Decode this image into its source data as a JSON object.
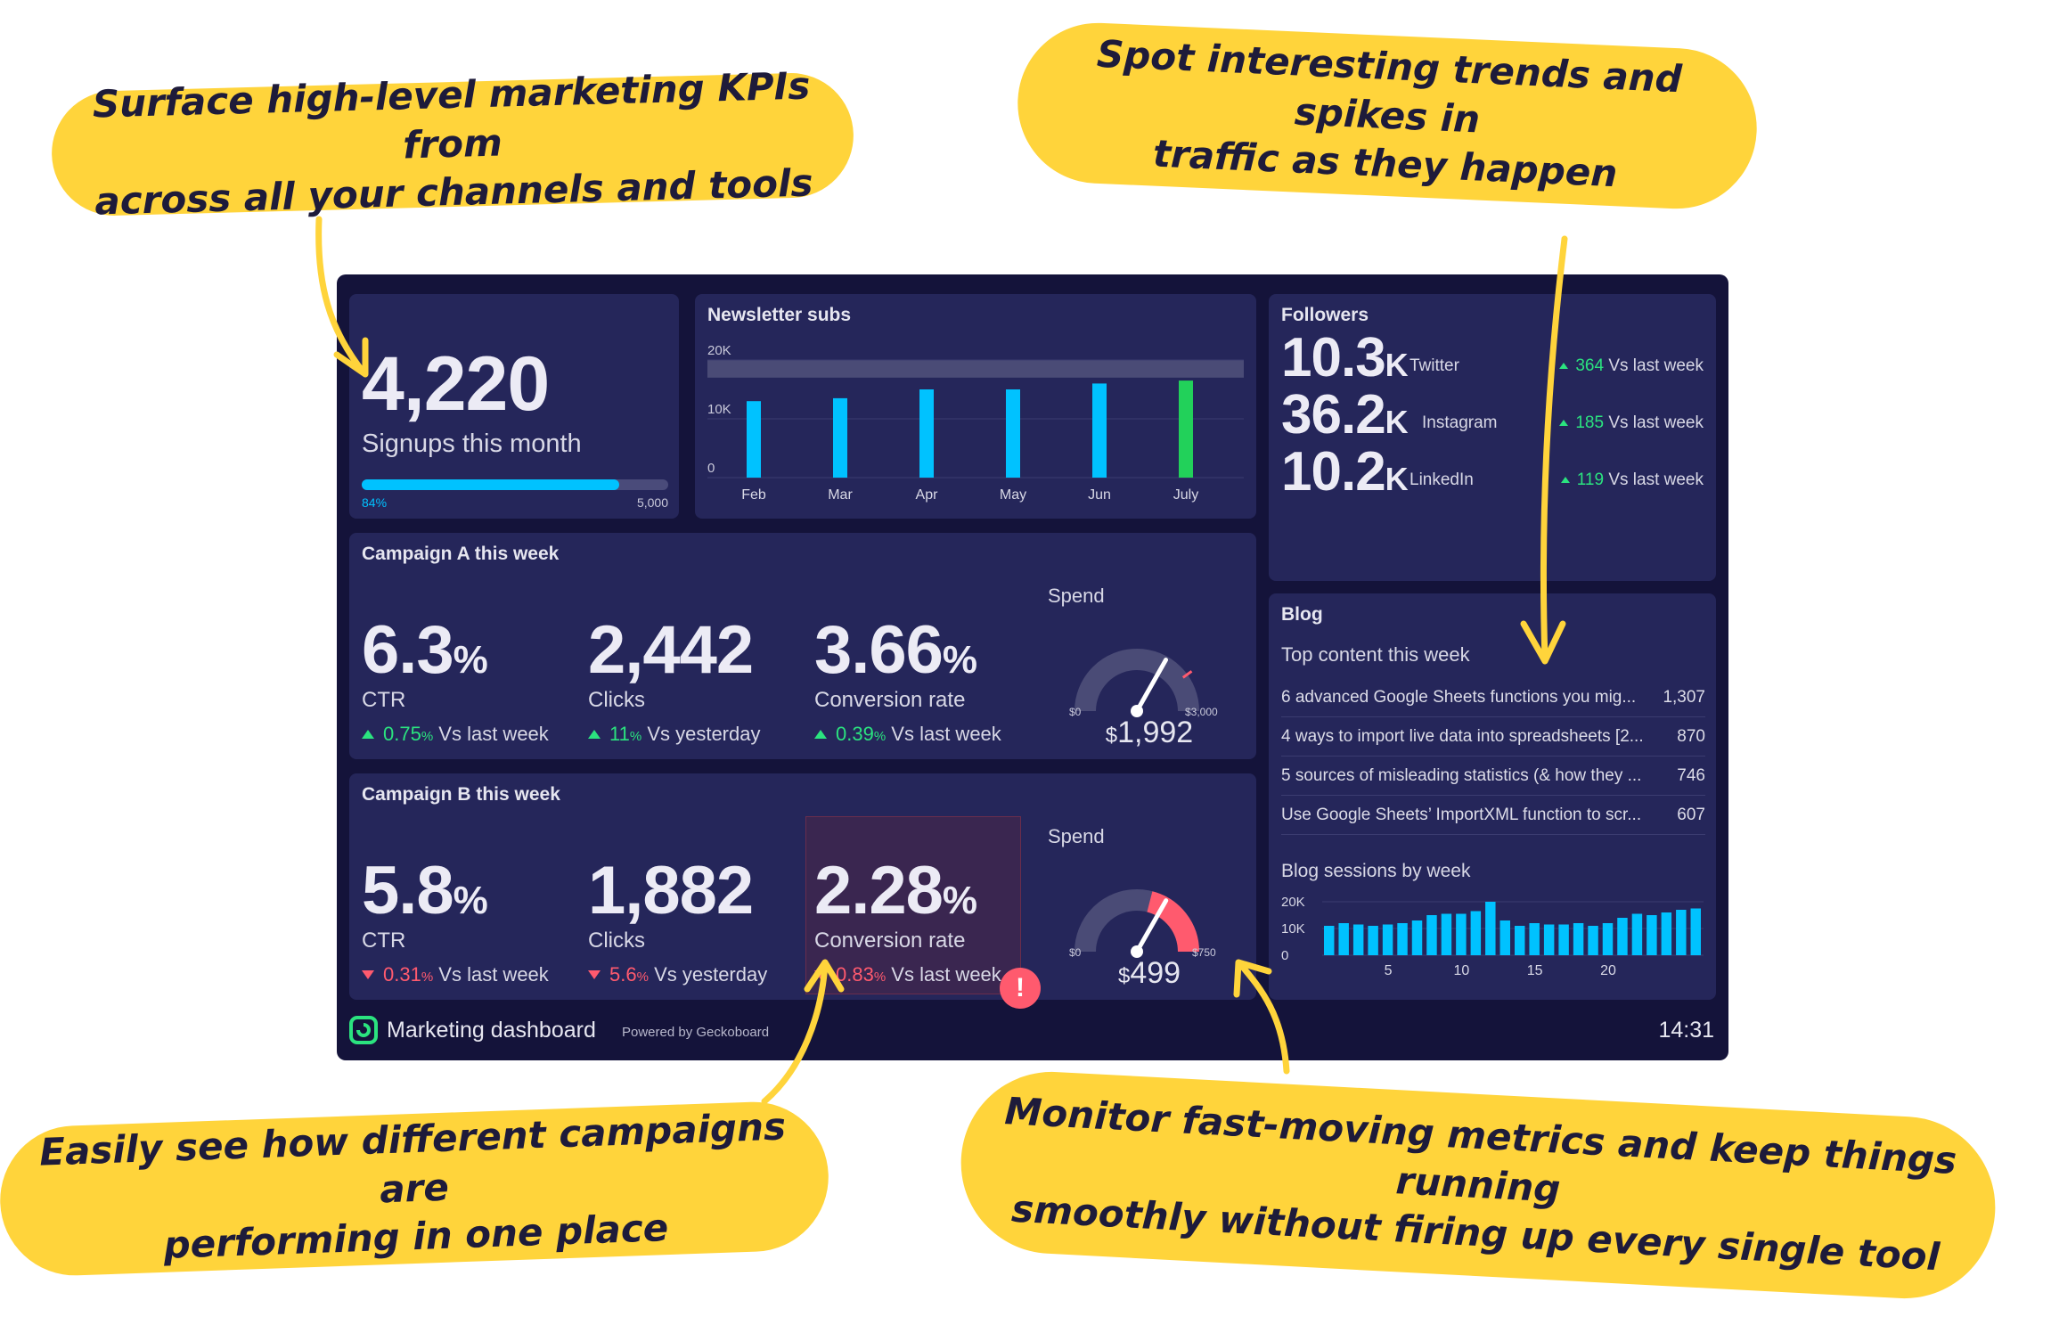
{
  "callouts": {
    "top_left": [
      "Surface high-level marketing KPIs from",
      "across all your channels and tools"
    ],
    "top_right": [
      "Spot interesting trends and spikes in",
      "traffic as they happen"
    ],
    "bottom_left": [
      "Easily see how different campaigns are",
      "performing in one place"
    ],
    "bottom_right": [
      "Monitor fast-moving metrics and keep things running",
      "smoothly without firing up every single tool"
    ]
  },
  "colors": {
    "callout_yellow": "#ffd43b",
    "dashboard_bg": "#14133a",
    "panel_bg": "#25265a",
    "bar_blue": "#00c2ff",
    "bar_green": "#22d15a",
    "positive": "#2be37f",
    "negative": "#ff5a6e",
    "alert_panel": "#3a2650"
  },
  "signups": {
    "value": "4,220",
    "label": "Signups this month",
    "progress": 0.84,
    "progress_label": "84%",
    "goal_label": "5,000"
  },
  "newsletter": {
    "title": "Newsletter subs",
    "chart_data": {
      "type": "bar",
      "title": "Newsletter subs",
      "categories": [
        "Feb",
        "Mar",
        "Apr",
        "May",
        "Jun",
        "July"
      ],
      "values": [
        13000,
        13500,
        15000,
        15000,
        16000,
        16500
      ],
      "highlight_last": true,
      "ylim": [
        0,
        20000
      ],
      "yticks": [
        "0",
        "10K",
        "20K"
      ],
      "target_band": [
        17000,
        20000
      ]
    }
  },
  "followers": {
    "title": "Followers",
    "rows": [
      {
        "value": "10.3",
        "unit": "K",
        "network": "Twitter",
        "change": "364",
        "compare": "Vs last week"
      },
      {
        "value": "36.2",
        "unit": "K",
        "network": "Instagram",
        "change": "185",
        "compare": "Vs last week"
      },
      {
        "value": "10.2",
        "unit": "K",
        "network": "LinkedIn",
        "change": "119",
        "compare": "Vs last week"
      }
    ]
  },
  "campaign_a": {
    "title": "Campaign A this week",
    "ctr": {
      "value": "6.3",
      "unit": "%",
      "label": "CTR",
      "change": "0.75",
      "change_unit": "%",
      "compare": "Vs last week"
    },
    "clicks": {
      "value": "2,442",
      "label": "Clicks",
      "change": "11",
      "change_unit": "%",
      "compare": "Vs yesterday"
    },
    "conversion": {
      "value": "3.66",
      "unit": "%",
      "label": "Conversion rate",
      "change": "0.39",
      "change_unit": "%",
      "compare": "Vs last week"
    },
    "spend": {
      "label": "Spend",
      "currency": "$",
      "value": "1,992",
      "min_label": "$0",
      "max_label": "$3,000",
      "fraction": 0.664,
      "threshold_fraction": 0.8
    }
  },
  "campaign_b": {
    "title": "Campaign B this week",
    "ctr": {
      "value": "5.8",
      "unit": "%",
      "label": "CTR",
      "change": "0.31",
      "change_unit": "%",
      "compare": "Vs last week"
    },
    "clicks": {
      "value": "1,882",
      "label": "Clicks",
      "change": "5.6",
      "change_unit": "%",
      "compare": "Vs yesterday"
    },
    "conversion": {
      "value": "2.28",
      "unit": "%",
      "label": "Conversion rate",
      "change": "0.83",
      "change_unit": "%",
      "compare": "Vs last week",
      "alert": "!"
    },
    "spend": {
      "label": "Spend",
      "currency": "$",
      "value": "499",
      "min_label": "$0",
      "max_label": "$750",
      "fraction": 0.665,
      "red_zone_start": 0.58
    }
  },
  "blog": {
    "title": "Blog",
    "top_content_title": "Top content this week",
    "items": [
      {
        "title": "6 advanced Google Sheets functions you mig...",
        "value": "1,307"
      },
      {
        "title": "4 ways to import live data into spreadsheets [2...",
        "value": "870"
      },
      {
        "title": "5 sources of misleading statistics (& how they ...",
        "value": "746"
      },
      {
        "title": "Use Google Sheets’ ImportXML function to scr...",
        "value": "607"
      }
    ],
    "sessions_title": "Blog sessions by week",
    "chart_data": {
      "type": "bar",
      "title": "Blog sessions by week",
      "x": [
        1,
        2,
        3,
        4,
        5,
        6,
        7,
        8,
        9,
        10,
        11,
        12,
        13,
        14,
        15,
        16,
        17,
        18,
        19,
        20,
        21,
        22,
        23,
        24,
        25,
        26
      ],
      "values": [
        11000,
        12000,
        11500,
        11000,
        11500,
        12000,
        13000,
        15000,
        15500,
        15500,
        16500,
        20000,
        13000,
        11000,
        12000,
        11500,
        11500,
        12000,
        11000,
        12000,
        14000,
        15500,
        15000,
        16000,
        17000,
        17500
      ],
      "xticks": [
        "5",
        "10",
        "15",
        "20"
      ],
      "yticks": [
        "0",
        "10K",
        "20K"
      ],
      "ylim": [
        0,
        20000
      ]
    }
  },
  "footer": {
    "title": "Marketing dashboard",
    "powered": "Powered by Geckoboard",
    "time": "14:31"
  }
}
